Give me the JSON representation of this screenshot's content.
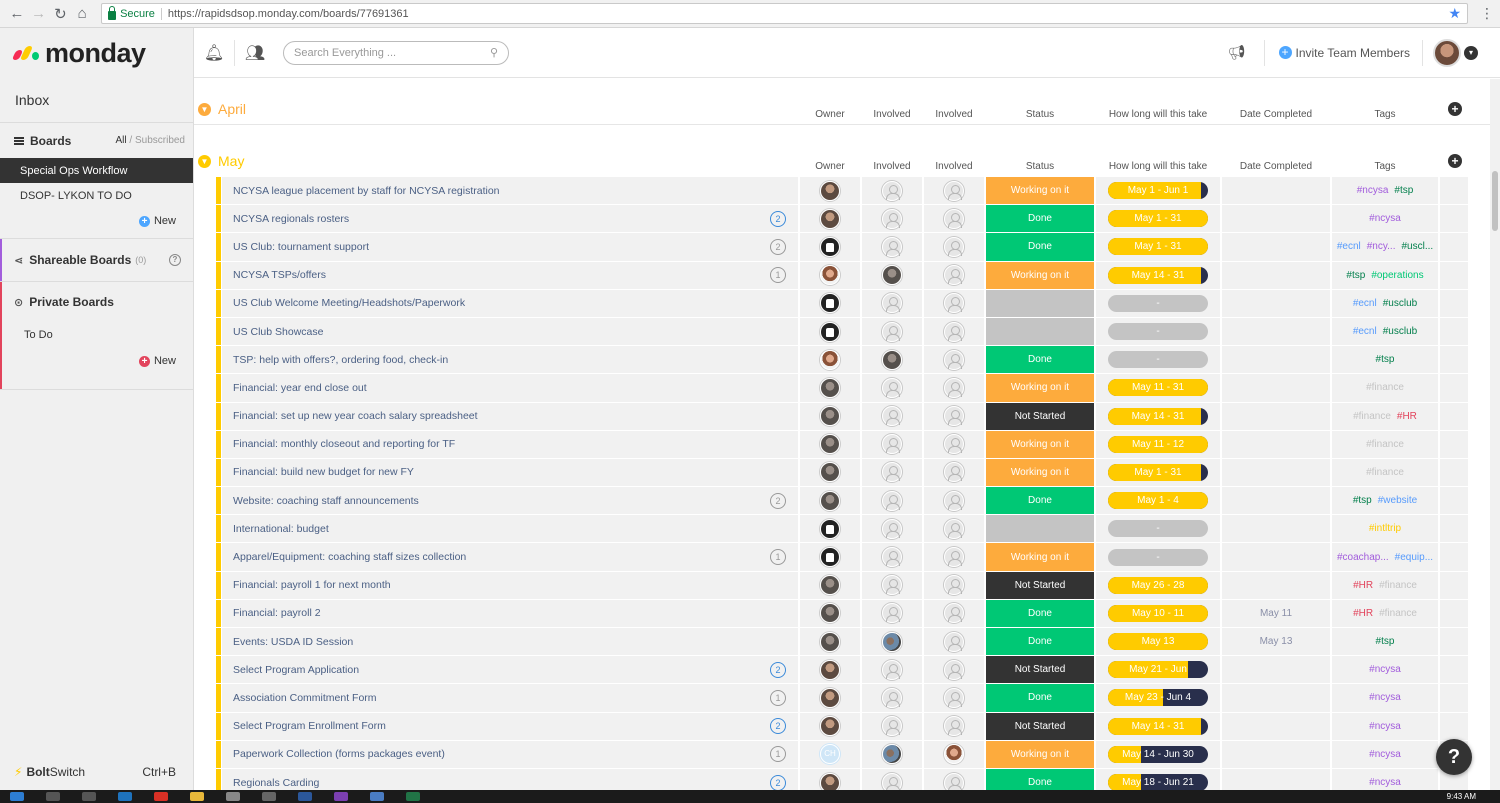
{
  "browser": {
    "secure_label": "Secure",
    "url": "https://rapidsdsop.monday.com/boards/77691361"
  },
  "sidebar": {
    "logo_text": "monday",
    "inbox": "Inbox",
    "boards_title": "Boards",
    "filter_all": "All",
    "filter_sep": " / ",
    "filter_subscribed": "Subscribed",
    "boards": [
      "Special Ops Workflow",
      "DSOP- LYKON TO DO"
    ],
    "new_label": "New",
    "shareable_title": "Shareable Boards",
    "shareable_count": "(0)",
    "private_title": "Private Boards",
    "private_items": [
      "To Do"
    ],
    "private_new_label": "New",
    "bolt_a": "Bolt",
    "bolt_b": "Switch",
    "bolt_shortcut": "Ctrl+B"
  },
  "topbar": {
    "search_placeholder": "Search Everything ...",
    "invite_label": "Invite Team Members"
  },
  "columns": [
    "Owner",
    "Involved",
    "Involved",
    "Status",
    "How long will this take",
    "Date Completed",
    "Tags"
  ],
  "groups": [
    {
      "title": "April",
      "color": "#fdab3d"
    },
    {
      "title": "May",
      "color": "#ffcb00"
    }
  ],
  "colors": {
    "working": "#fdab3d",
    "done": "#00c875",
    "not_started": "#333333",
    "timeline": "#ffcb00",
    "timeline_dark": "#292f4c"
  },
  "tag_colors": {
    "#ncysa": "#a25ddc",
    "#tsp": "#037f4c",
    "#ecnl": "#579bfc",
    "#ncy...": "#a25ddc",
    "#uscl...": "#037f4c",
    "#operations": "#00c875",
    "#usclub": "#037f4c",
    "#finance": "#c4c4c4",
    "#HR": "#e2445c",
    "#website": "#579bfc",
    "#intltrip": "#ffcb00",
    "#coachap...": "#a25ddc",
    "#equip...": "#579bfc"
  },
  "rows": [
    {
      "name": "NCYSA league placement by staff for NCYSA registration",
      "updates": "",
      "owner": "man",
      "inv1": "empty",
      "inv2": "empty",
      "status": "Working on it",
      "status_type": "working",
      "time": "May 1 - Jun 1",
      "progress": 0.93,
      "date": "",
      "tags": [
        "#ncysa",
        "#tsp"
      ]
    },
    {
      "name": "NCYSA regionals rosters",
      "updates": "2",
      "upd_blue": true,
      "owner": "man",
      "inv1": "empty",
      "inv2": "empty",
      "status": "Done",
      "status_type": "done",
      "time": "May 1 - 31",
      "progress": 1,
      "date": "",
      "tags": [
        "#ncysa"
      ]
    },
    {
      "name": "US Club: tournament support",
      "updates": "2",
      "upd_blue": false,
      "owner": "black",
      "inv1": "empty",
      "inv2": "empty",
      "status": "Done",
      "status_type": "done",
      "time": "May 1 - 31",
      "progress": 1,
      "date": "",
      "tags": [
        "#ecnl",
        "#ncy...",
        "#uscl..."
      ]
    },
    {
      "name": "NCYSA TSPs/offers",
      "updates": "1",
      "upd_blue": false,
      "owner": "woman",
      "inv1": "gray",
      "inv2": "empty",
      "status": "Working on it",
      "status_type": "working",
      "time": "May 14 - 31",
      "progress": 0.93,
      "date": "",
      "tags": [
        "#tsp",
        "#operations"
      ]
    },
    {
      "name": "US Club Welcome Meeting/Headshots/Paperwork",
      "updates": "",
      "owner": "black",
      "inv1": "empty",
      "inv2": "empty",
      "status": "",
      "status_type": "empty",
      "time": "-",
      "progress": 0,
      "date": "",
      "tags": [
        "#ecnl",
        "#usclub"
      ]
    },
    {
      "name": "US Club Showcase",
      "updates": "",
      "owner": "black",
      "inv1": "empty",
      "inv2": "empty",
      "status": "",
      "status_type": "empty",
      "time": "-",
      "progress": 0,
      "date": "",
      "tags": [
        "#ecnl",
        "#usclub"
      ]
    },
    {
      "name": "TSP: help with offers?, ordering food, check-in",
      "updates": "",
      "owner": "woman",
      "inv1": "gray",
      "inv2": "empty",
      "status": "Done",
      "status_type": "done",
      "time": "-",
      "progress": 0,
      "date": "",
      "tags": [
        "#tsp"
      ]
    },
    {
      "name": "Financial: year end close out",
      "updates": "",
      "owner": "gray",
      "inv1": "empty",
      "inv2": "empty",
      "status": "Working on it",
      "status_type": "working",
      "time": "May 11 - 31",
      "progress": 1,
      "date": "",
      "tags": [
        "#finance"
      ]
    },
    {
      "name": "Financial: set up new year coach salary spreadsheet",
      "updates": "",
      "owner": "gray",
      "inv1": "empty",
      "inv2": "empty",
      "status": "Not Started",
      "status_type": "not_started",
      "time": "May 14 - 31",
      "progress": 0.93,
      "date": "",
      "tags": [
        "#finance",
        "#HR"
      ]
    },
    {
      "name": "Financial: monthly closeout and reporting for TF",
      "updates": "",
      "owner": "gray",
      "inv1": "empty",
      "inv2": "empty",
      "status": "Working on it",
      "status_type": "working",
      "time": "May 11 - 12",
      "progress": 1,
      "date": "",
      "tags": [
        "#finance"
      ]
    },
    {
      "name": "Financial: build new budget for new FY",
      "updates": "",
      "owner": "gray",
      "inv1": "empty",
      "inv2": "empty",
      "status": "Working on it",
      "status_type": "working",
      "time": "May 1 - 31",
      "progress": 0.93,
      "date": "",
      "tags": [
        "#finance"
      ]
    },
    {
      "name": "Website: coaching staff announcements",
      "updates": "2",
      "upd_blue": false,
      "owner": "gray",
      "inv1": "empty",
      "inv2": "empty",
      "status": "Done",
      "status_type": "done",
      "time": "May 1 - 4",
      "progress": 1,
      "date": "",
      "tags": [
        "#tsp",
        "#website"
      ]
    },
    {
      "name": "International: budget",
      "updates": "",
      "owner": "black",
      "inv1": "empty",
      "inv2": "empty",
      "status": "",
      "status_type": "empty",
      "time": "-",
      "progress": 0,
      "date": "",
      "tags": [
        "#intltrip"
      ]
    },
    {
      "name": "Apparel/Equipment: coaching staff sizes collection",
      "updates": "1",
      "upd_blue": false,
      "owner": "black",
      "inv1": "empty",
      "inv2": "empty",
      "status": "Working on it",
      "status_type": "working",
      "time": "-",
      "progress": 0,
      "date": "",
      "tags": [
        "#coachap...",
        "#equip..."
      ]
    },
    {
      "name": "Financial: payroll 1 for next month",
      "updates": "",
      "owner": "gray",
      "inv1": "empty",
      "inv2": "empty",
      "status": "Not Started",
      "status_type": "not_started",
      "time": "May 26 - 28",
      "progress": 1,
      "date": "",
      "tags": [
        "#HR",
        "#finance"
      ]
    },
    {
      "name": "Financial: payroll 2",
      "updates": "",
      "owner": "gray",
      "inv1": "empty",
      "inv2": "empty",
      "status": "Done",
      "status_type": "done",
      "time": "May 10 - 11",
      "progress": 1,
      "date": "May 11",
      "tags": [
        "#HR",
        "#finance"
      ]
    },
    {
      "name": "Events: USDA ID Session",
      "updates": "",
      "owner": "gray",
      "inv1": "group",
      "inv2": "empty",
      "status": "Done",
      "status_type": "done",
      "time": "May 13",
      "progress": 1,
      "date": "May 13",
      "tags": [
        "#tsp"
      ]
    },
    {
      "name": "Select Program Application",
      "updates": "2",
      "upd_blue": true,
      "owner": "man",
      "inv1": "empty",
      "inv2": "empty",
      "status": "Not Started",
      "status_type": "not_started",
      "time": "May 21 - Jun",
      "progress": 0.8,
      "date": "",
      "tags": [
        "#ncysa"
      ]
    },
    {
      "name": "Association Commitment Form",
      "updates": "1",
      "upd_blue": false,
      "owner": "man",
      "inv1": "empty",
      "inv2": "empty",
      "status": "Done",
      "status_type": "done",
      "time": "May 23 - Jun 4",
      "progress": 0.55,
      "date": "",
      "tags": [
        "#ncysa"
      ]
    },
    {
      "name": "Select Program Enrollment Form",
      "updates": "2",
      "upd_blue": true,
      "owner": "man",
      "inv1": "empty",
      "inv2": "empty",
      "status": "Not Started",
      "status_type": "not_started",
      "time": "May 14 - 31",
      "progress": 0.93,
      "date": "",
      "tags": [
        "#ncysa"
      ]
    },
    {
      "name": "Paperwork Collection (forms packages event)",
      "updates": "1",
      "upd_blue": false,
      "owner": "initials",
      "owner_initials": "CH",
      "inv1": "group",
      "inv2": "woman",
      "status": "Working on it",
      "status_type": "working",
      "time": "May 14 - Jun 30",
      "progress": 0.33,
      "date": "",
      "tags": [
        "#ncysa"
      ]
    },
    {
      "name": "Regionals Carding",
      "updates": "2",
      "upd_blue": true,
      "owner": "man",
      "inv1": "empty",
      "inv2": "empty",
      "status": "Done",
      "status_type": "done",
      "time": "May 18 - Jun 21",
      "progress": 0.33,
      "date": "",
      "tags": [
        "#ncysa"
      ]
    }
  ],
  "help_label": "?",
  "clock": "9:43 AM"
}
